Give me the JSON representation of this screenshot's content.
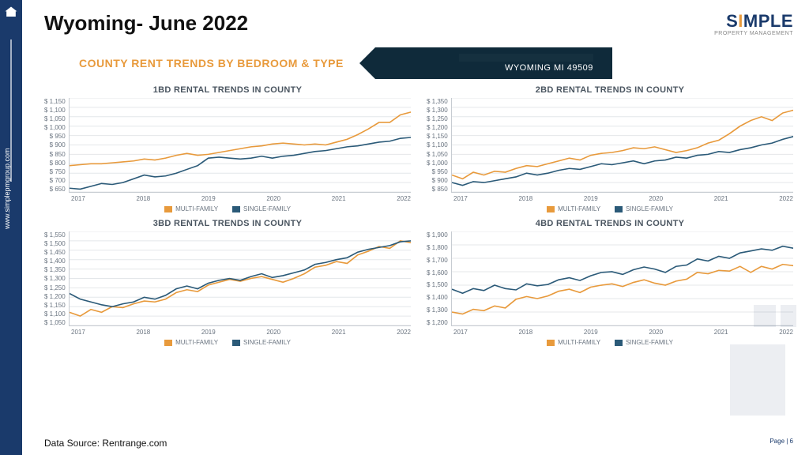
{
  "title": "Wyoming- June 2022",
  "subhead": "COUNTY RENT TRENDS BY BEDROOM & TYPE",
  "badge_location": "WYOMING MI 49509",
  "sidebar_url": "www.simplepmgroup.com",
  "logo_main": "SIMPLE",
  "logo_sub": "PROPERTY MANAGEMENT",
  "source": "Data Source: Rentrange.com",
  "page_label": "Page  |  6",
  "colors": {
    "multi": "#e89a3c",
    "single": "#2b5a78",
    "grid": "#e4e7ea",
    "axis": "#c7ccd2",
    "sidebar": "#1a3a6b",
    "badge": "#0f2a3a",
    "subhead": "#e89a3c",
    "text_muted": "#6a7480"
  },
  "x_labels": [
    "2017",
    "2018",
    "2019",
    "2020",
    "2021",
    "2022"
  ],
  "legend": {
    "multi": "MULTI-FAMILY",
    "single": "SINGLE-FAMILY"
  },
  "charts": [
    {
      "key": "bd1",
      "title": "1BD RENTAL TRENDS IN COUNTY",
      "ylim": [
        650,
        1150
      ],
      "ystep": 50,
      "multi": [
        790,
        795,
        800,
        800,
        805,
        810,
        815,
        825,
        820,
        830,
        845,
        855,
        845,
        850,
        860,
        870,
        880,
        890,
        895,
        905,
        910,
        905,
        900,
        905,
        900,
        915,
        930,
        955,
        985,
        1020,
        1020,
        1060,
        1075
      ],
      "single": [
        670,
        665,
        680,
        695,
        690,
        700,
        720,
        740,
        730,
        735,
        750,
        770,
        790,
        830,
        835,
        830,
        825,
        830,
        840,
        830,
        840,
        845,
        855,
        865,
        870,
        880,
        890,
        895,
        905,
        915,
        920,
        935,
        940
      ]
    },
    {
      "key": "bd2",
      "title": "2BD RENTAL TRENDS IN COUNTY",
      "ylim": [
        850,
        1350
      ],
      "ystep": 50,
      "multi": [
        940,
        920,
        955,
        940,
        960,
        955,
        975,
        990,
        985,
        1000,
        1015,
        1030,
        1020,
        1045,
        1055,
        1060,
        1070,
        1085,
        1080,
        1090,
        1075,
        1060,
        1070,
        1085,
        1110,
        1125,
        1160,
        1200,
        1230,
        1250,
        1230,
        1270,
        1285
      ],
      "single": [
        900,
        885,
        905,
        900,
        910,
        920,
        930,
        950,
        940,
        950,
        965,
        975,
        970,
        985,
        1000,
        995,
        1005,
        1015,
        1000,
        1015,
        1020,
        1035,
        1030,
        1045,
        1050,
        1065,
        1060,
        1075,
        1085,
        1100,
        1110,
        1130,
        1145
      ]
    },
    {
      "key": "bd3",
      "title": "3BD RENTAL TRENDS IN COUNTY",
      "ylim": [
        1050,
        1550
      ],
      "ystep": 50,
      "multi": [
        1120,
        1100,
        1135,
        1120,
        1150,
        1145,
        1165,
        1180,
        1175,
        1190,
        1225,
        1240,
        1230,
        1265,
        1280,
        1295,
        1285,
        1300,
        1310,
        1295,
        1280,
        1300,
        1325,
        1360,
        1370,
        1390,
        1380,
        1425,
        1445,
        1470,
        1460,
        1500,
        1490
      ],
      "single": [
        1220,
        1190,
        1175,
        1160,
        1150,
        1165,
        1175,
        1200,
        1190,
        1210,
        1245,
        1260,
        1245,
        1275,
        1290,
        1300,
        1290,
        1310,
        1325,
        1305,
        1315,
        1330,
        1345,
        1375,
        1385,
        1400,
        1410,
        1440,
        1455,
        1465,
        1475,
        1495,
        1500
      ]
    },
    {
      "key": "bd4",
      "title": "4BD RENTAL TRENDS IN COUNTY",
      "ylim": [
        1200,
        1900
      ],
      "ystep": 100,
      "multi": [
        1300,
        1285,
        1320,
        1310,
        1345,
        1330,
        1395,
        1415,
        1400,
        1420,
        1455,
        1470,
        1445,
        1485,
        1500,
        1510,
        1490,
        1520,
        1540,
        1515,
        1500,
        1530,
        1545,
        1595,
        1585,
        1610,
        1605,
        1640,
        1595,
        1640,
        1620,
        1655,
        1645
      ],
      "single": [
        1470,
        1440,
        1475,
        1460,
        1500,
        1475,
        1465,
        1510,
        1495,
        1505,
        1540,
        1555,
        1535,
        1570,
        1595,
        1600,
        1580,
        1615,
        1635,
        1620,
        1595,
        1640,
        1650,
        1695,
        1680,
        1715,
        1700,
        1740,
        1755,
        1770,
        1760,
        1790,
        1775
      ]
    }
  ]
}
